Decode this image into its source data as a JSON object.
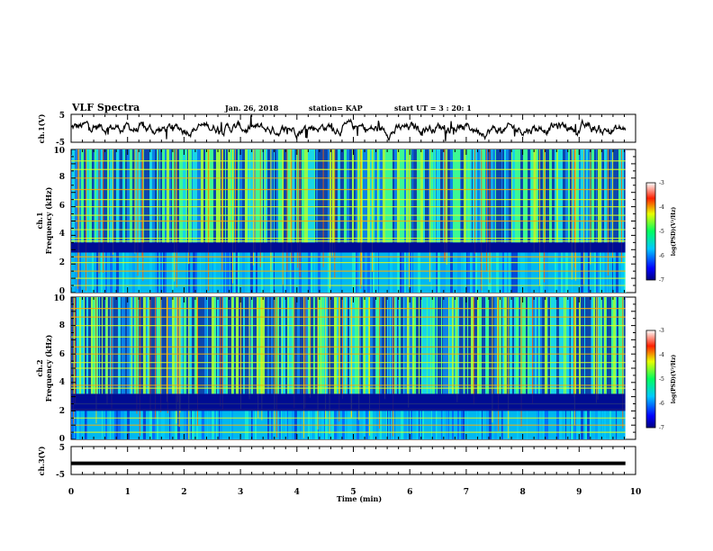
{
  "header": {
    "title": "VLF Spectra",
    "date": "Jan. 26, 2018",
    "station": "station= KAP",
    "start_ut": "start UT =  3 : 20: 1"
  },
  "chart_data": [
    {
      "type": "line",
      "name": "ch1-waveform",
      "ylabel": "ch.1(V)",
      "ylim": [
        -5,
        5
      ],
      "yticks": [
        "5",
        "-5"
      ],
      "xlim": [
        0,
        10
      ],
      "grid": false
    },
    {
      "type": "heatmap",
      "name": "ch1-spectrogram",
      "ylabel_line1": "ch.1",
      "ylabel_line2": "Frequency (kHz)",
      "ylim": [
        0,
        10
      ],
      "yticks": [
        "0",
        "2",
        "4",
        "6",
        "8",
        "10"
      ],
      "xlim": [
        0,
        10
      ],
      "colorbar": {
        "label": "log(PSD)(V²/Hz)",
        "range": [
          -7,
          -3
        ],
        "ticks": [
          "-3",
          "-4",
          "-5",
          "-6",
          "-7"
        ]
      }
    },
    {
      "type": "heatmap",
      "name": "ch2-spectrogram",
      "ylabel_line1": "ch.2",
      "ylabel_line2": "Frequency (kHz)",
      "ylim": [
        0,
        10
      ],
      "yticks": [
        "0",
        "2",
        "4",
        "6",
        "8",
        "10"
      ],
      "xlim": [
        0,
        10
      ],
      "colorbar": {
        "label": "log(PSD)(V²/Hz)",
        "range": [
          -7,
          -3
        ],
        "ticks": [
          "-3",
          "-4",
          "-5",
          "-6",
          "-7"
        ]
      }
    },
    {
      "type": "line",
      "name": "ch3-waveform",
      "ylabel": "ch.3(V)",
      "ylim": [
        -5,
        5
      ],
      "yticks": [
        "5",
        "-5"
      ],
      "xlim": [
        0,
        10
      ],
      "values": [
        -1,
        -1
      ],
      "xlabel": "Time (min)",
      "xticks": [
        "0",
        "1",
        "2",
        "3",
        "4",
        "5",
        "6",
        "7",
        "8",
        "9",
        "10"
      ]
    }
  ]
}
